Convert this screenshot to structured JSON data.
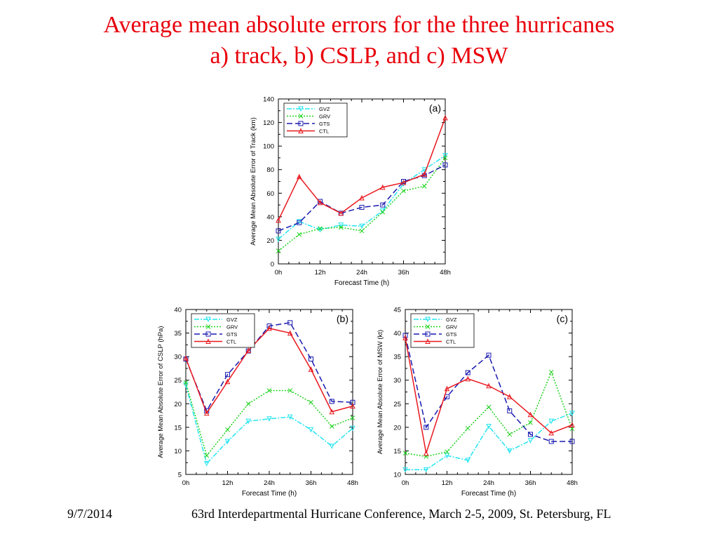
{
  "slide": {
    "title_line1": "Average mean absolute errors for the three hurricanes",
    "title_line2": "a) track, b) CSLP, and c) MSW",
    "footer_date": "9/7/2014",
    "footer_conference": "63rd Interdepartmental Hurricane Conference, March 2-5, 2009, St. Petersburg, FL"
  },
  "colors": {
    "title": "#e8000b",
    "GVZ": "#26e5f0",
    "GRV": "#1fd31f",
    "GTS": "#1a1ab0",
    "CTL": "#e8181e"
  },
  "chart_data": [
    {
      "panel": "(a)",
      "type": "line",
      "xlabel": "Forecast Time (h)",
      "ylabel": "Average Mean Absolute Error of Track (km)",
      "x": [
        0,
        6,
        12,
        18,
        24,
        30,
        36,
        42,
        48
      ],
      "xticks": [
        "0h",
        "12h",
        "24h",
        "36h",
        "48h"
      ],
      "ylim": [
        0,
        140
      ],
      "yticks": [
        0,
        20,
        40,
        60,
        80,
        100,
        120,
        140
      ],
      "legend_position": "top-left",
      "series": [
        {
          "name": "GVZ",
          "values": [
            21,
            36,
            29,
            33,
            32,
            45,
            68,
            80,
            92
          ]
        },
        {
          "name": "GRV",
          "values": [
            11,
            25,
            30,
            31,
            28,
            44,
            62,
            66,
            90
          ]
        },
        {
          "name": "GTS",
          "values": [
            28,
            35,
            53,
            43,
            48,
            50,
            70,
            75,
            84
          ]
        },
        {
          "name": "CTL",
          "values": [
            37,
            74,
            52,
            43,
            56,
            65,
            69,
            76,
            124
          ]
        }
      ]
    },
    {
      "panel": "(b)",
      "type": "line",
      "xlabel": "Forecast Time (h)",
      "ylabel": "Average Mean Absolute Error of CSLP (hPa)",
      "x": [
        0,
        6,
        12,
        18,
        24,
        30,
        36,
        42,
        48
      ],
      "xticks": [
        "0h",
        "12h",
        "24h",
        "36h",
        "48h"
      ],
      "ylim": [
        5,
        40
      ],
      "yticks": [
        5,
        10,
        15,
        20,
        25,
        30,
        35,
        40
      ],
      "legend_position": "top-left",
      "series": [
        {
          "name": "GVZ",
          "values": [
            24,
            7.3,
            12,
            16.3,
            16.8,
            17.2,
            14.5,
            11,
            14.8
          ]
        },
        {
          "name": "GRV",
          "values": [
            24.5,
            9,
            14.5,
            20,
            22.8,
            22.8,
            20.3,
            15.2,
            17
          ]
        },
        {
          "name": "GTS",
          "values": [
            29.5,
            18.5,
            26.2,
            31.2,
            36.5,
            37.2,
            29.5,
            20.5,
            20.3
          ]
        },
        {
          "name": "CTL",
          "values": [
            29.7,
            18,
            24.7,
            31.3,
            36,
            35,
            27.3,
            18.3,
            19.5
          ]
        }
      ]
    },
    {
      "panel": "(c)",
      "type": "line",
      "xlabel": "Forecast Time (h)",
      "ylabel": "Average Mean Absolute Error of MSW (kt)",
      "x": [
        0,
        6,
        12,
        18,
        24,
        30,
        36,
        42,
        48
      ],
      "xticks": [
        "0h",
        "12h",
        "24h",
        "36h",
        "48h"
      ],
      "ylim": [
        10,
        45
      ],
      "yticks": [
        10,
        15,
        20,
        25,
        30,
        35,
        40,
        45
      ],
      "legend_position": "top-left",
      "series": [
        {
          "name": "GVZ",
          "values": [
            11,
            11,
            14,
            13,
            20.2,
            15,
            17.2,
            21.3,
            23
          ]
        },
        {
          "name": "GRV",
          "values": [
            14.5,
            13.8,
            14.8,
            19.8,
            24.3,
            18.5,
            21,
            31.7,
            19.7
          ]
        },
        {
          "name": "GTS",
          "values": [
            39.5,
            20,
            26.5,
            31.6,
            35.3,
            23.5,
            18.5,
            17,
            17
          ]
        },
        {
          "name": "CTL",
          "values": [
            39,
            14.5,
            28.2,
            30.3,
            28.8,
            26.5,
            22.7,
            18.8,
            20.5
          ]
        }
      ]
    }
  ]
}
